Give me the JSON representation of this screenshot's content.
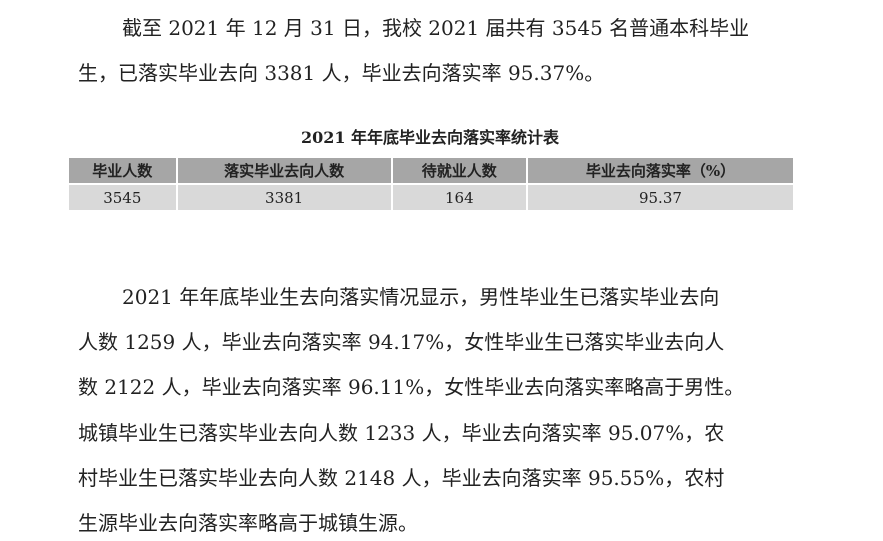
{
  "paragraph1": {
    "lines": [
      "截至 2021 年 12 月 31 日，我校 2021 届共有 3545 名普通本科毕业",
      "生，已落实毕业去向 3381 人，毕业去向落实率 95.37%。"
    ]
  },
  "table": {
    "caption": "2021 年年底毕业去向落实率统计表",
    "headers": [
      "毕业人数",
      "落实毕业去向人数",
      "待就业人数",
      "毕业去向落实率（%）"
    ],
    "row": [
      "3545",
      "3381",
      "164",
      "95.37"
    ]
  },
  "paragraph2": {
    "lines": [
      "2021 年年底毕业生去向落实情况显示，男性毕业生已落实毕业去向",
      "人数 1259 人，毕业去向落实率 94.17%，女性毕业生已落实毕业去向人",
      "数 2122 人，毕业去向落实率 96.11%，女性毕业去向落实率略高于男性。",
      "城镇毕业生已落实毕业去向人数 1233 人，毕业去向落实率 95.07%，农",
      "村毕业生已落实毕业去向人数 2148 人，毕业去向落实率 95.55%，农村",
      "生源毕业去向落实率略高于城镇生源。"
    ]
  }
}
